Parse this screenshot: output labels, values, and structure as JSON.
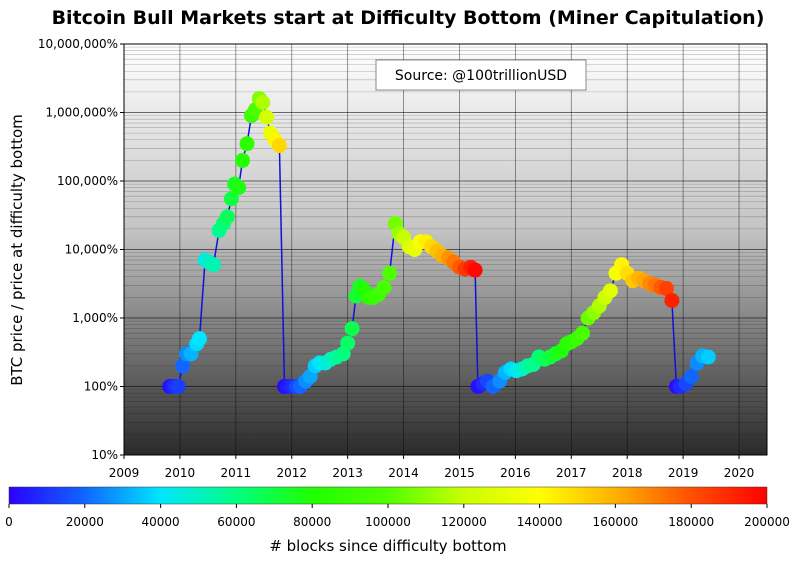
{
  "chart_data": {
    "type": "scatter",
    "title": "Bitcoin Bull Markets start at Difficulty Bottom (Miner Capitulation)",
    "annotation": "Source: @100trillionUSD",
    "xlabel": "",
    "ylabel": "BTC price / price at difficulty bottom",
    "x_ticks": [
      "2009",
      "2010",
      "2011",
      "2012",
      "2013",
      "2014",
      "2015",
      "2016",
      "2017",
      "2018",
      "2019",
      "2020"
    ],
    "y_ticks": [
      "10%",
      "100%",
      "1,000%",
      "10,000%",
      "100,000%",
      "1,000,000%",
      "10,000,000%"
    ],
    "yscale": "log",
    "ylim": [
      10,
      10000000
    ],
    "xlim": [
      2009,
      2020.5
    ],
    "line_color": "#1010d8",
    "colorbar": {
      "label": "# blocks since difficulty bottom",
      "ticks": [
        "0",
        "20000",
        "40000",
        "60000",
        "80000",
        "100000",
        "120000",
        "140000",
        "160000",
        "180000",
        "200000"
      ],
      "range": [
        0,
        200000
      ]
    },
    "series": [
      {
        "points": [
          [
            2009.82,
            100,
            3000
          ],
          [
            2009.87,
            100,
            6000
          ],
          [
            2009.92,
            100,
            9000
          ],
          [
            2009.97,
            100,
            12000
          ],
          [
            2010.05,
            200,
            20000
          ],
          [
            2010.12,
            300,
            26000
          ],
          [
            2010.2,
            300,
            32000
          ],
          [
            2010.3,
            420,
            38000
          ],
          [
            2010.35,
            500,
            40000
          ],
          [
            2010.45,
            7000,
            45000
          ],
          [
            2010.52,
            6500,
            48000
          ],
          [
            2010.6,
            6000,
            52000
          ],
          [
            2010.7,
            19000,
            58000
          ],
          [
            2010.78,
            24000,
            62000
          ],
          [
            2010.85,
            30000,
            66000
          ],
          [
            2010.92,
            55000,
            70000
          ],
          [
            2010.98,
            90000,
            74000
          ],
          [
            2011.05,
            80000,
            78000
          ],
          [
            2011.12,
            200000,
            82000
          ],
          [
            2011.2,
            350000,
            86000
          ],
          [
            2011.28,
            900000,
            92000
          ],
          [
            2011.35,
            1100000,
            98000
          ],
          [
            2011.42,
            1600000,
            108000
          ],
          [
            2011.48,
            1400000,
            116000
          ],
          [
            2011.55,
            850000,
            124000
          ],
          [
            2011.62,
            500000,
            132000
          ],
          [
            2011.7,
            400000,
            142000
          ],
          [
            2011.78,
            330000,
            150000
          ],
          [
            2011.87,
            100,
            2000
          ],
          [
            2011.93,
            100,
            5000
          ],
          [
            2012.0,
            100,
            8000
          ],
          [
            2012.08,
            100,
            14000
          ],
          [
            2012.15,
            100,
            20000
          ],
          [
            2012.25,
            120,
            26000
          ],
          [
            2012.33,
            140,
            30000
          ],
          [
            2012.42,
            200,
            36000
          ],
          [
            2012.5,
            220,
            40000
          ],
          [
            2012.6,
            220,
            46000
          ],
          [
            2012.7,
            250,
            50000
          ],
          [
            2012.8,
            270,
            56000
          ],
          [
            2012.92,
            300,
            60000
          ],
          [
            2013.0,
            430,
            64000
          ],
          [
            2013.08,
            700,
            68000
          ],
          [
            2013.15,
            2100,
            72000
          ],
          [
            2013.22,
            2900,
            76000
          ],
          [
            2013.3,
            2500,
            80000
          ],
          [
            2013.38,
            2000,
            84000
          ],
          [
            2013.45,
            2000,
            88000
          ],
          [
            2013.55,
            2200,
            92000
          ],
          [
            2013.65,
            2800,
            96000
          ],
          [
            2013.75,
            4500,
            100000
          ],
          [
            2013.85,
            24000,
            106000
          ],
          [
            2013.92,
            17000,
            112000
          ],
          [
            2014.0,
            15000,
            120000
          ],
          [
            2014.1,
            11000,
            126000
          ],
          [
            2014.2,
            10000,
            132000
          ],
          [
            2014.3,
            13000,
            138000
          ],
          [
            2014.4,
            13000,
            144000
          ],
          [
            2014.5,
            11000,
            150000
          ],
          [
            2014.6,
            9500,
            156000
          ],
          [
            2014.7,
            8000,
            160000
          ],
          [
            2014.8,
            7500,
            166000
          ],
          [
            2014.9,
            6500,
            172000
          ],
          [
            2015.0,
            5500,
            178000
          ],
          [
            2015.1,
            5200,
            186000
          ],
          [
            2015.2,
            5500,
            192000
          ],
          [
            2015.28,
            5000,
            198000
          ],
          [
            2015.33,
            100,
            3000
          ],
          [
            2015.42,
            110,
            8000
          ],
          [
            2015.5,
            120,
            14000
          ],
          [
            2015.6,
            100,
            20000
          ],
          [
            2015.72,
            120,
            26000
          ],
          [
            2015.82,
            160,
            32000
          ],
          [
            2015.92,
            180,
            38000
          ],
          [
            2016.02,
            170,
            42000
          ],
          [
            2016.12,
            180,
            48000
          ],
          [
            2016.22,
            200,
            54000
          ],
          [
            2016.32,
            210,
            58000
          ],
          [
            2016.42,
            270,
            62000
          ],
          [
            2016.52,
            250,
            66000
          ],
          [
            2016.62,
            270,
            70000
          ],
          [
            2016.72,
            300,
            74000
          ],
          [
            2016.82,
            330,
            78000
          ],
          [
            2016.92,
            420,
            82000
          ],
          [
            2017.0,
            450,
            86000
          ],
          [
            2017.1,
            500,
            90000
          ],
          [
            2017.2,
            600,
            96000
          ],
          [
            2017.3,
            1000,
            104000
          ],
          [
            2017.4,
            1200,
            110000
          ],
          [
            2017.5,
            1500,
            116000
          ],
          [
            2017.6,
            2000,
            122000
          ],
          [
            2017.7,
            2500,
            128000
          ],
          [
            2017.8,
            4500,
            136000
          ],
          [
            2017.9,
            6000,
            142000
          ],
          [
            2018.0,
            4500,
            148000
          ],
          [
            2018.1,
            3500,
            154000
          ],
          [
            2018.2,
            3800,
            158000
          ],
          [
            2018.3,
            3500,
            162000
          ],
          [
            2018.4,
            3200,
            168000
          ],
          [
            2018.5,
            3000,
            172000
          ],
          [
            2018.6,
            2800,
            178000
          ],
          [
            2018.7,
            2700,
            184000
          ],
          [
            2018.8,
            1800,
            192000
          ],
          [
            2018.88,
            100,
            3000
          ],
          [
            2018.95,
            100,
            8000
          ],
          [
            2019.05,
            110,
            14000
          ],
          [
            2019.15,
            140,
            20000
          ],
          [
            2019.25,
            220,
            26000
          ],
          [
            2019.35,
            280,
            32000
          ],
          [
            2019.45,
            270,
            36000
          ]
        ]
      }
    ],
    "grid": true,
    "legend": "none"
  }
}
